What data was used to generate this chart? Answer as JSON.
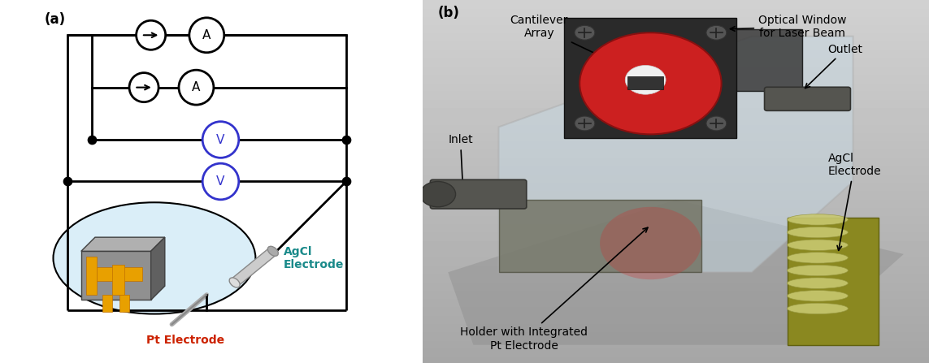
{
  "fig_width": 11.43,
  "fig_height": 4.47,
  "bg_color": "#ffffff",
  "panel_a_label": "(a)",
  "panel_b_label": "(b)",
  "lc": "#000000",
  "lw": 2.0,
  "dot_color": "#000000",
  "dot_size": 55,
  "ammeter_edge": "#000000",
  "voltmeter_edge": "#3333cc",
  "voltmeter_text": "#3333cc",
  "ammeter_text": "#000000",
  "agcl_text_color": "#1a8a8a",
  "pt_text_color": "#cc2200",
  "ellipse_fill": "#daeef8",
  "ellipse_edge": "#000000",
  "chip_gray": "#808080",
  "chip_dark": "#404040",
  "gold_color": "#e8a000",
  "gold_edge": "#c07000",
  "cyl_fill": "#bbbbbb",
  "cyl_edge": "#888888",
  "pt_rod_color": "#aaaaaa",
  "bg_b": "#b8b8b8",
  "cantilever_label": "Cantilever\nArray",
  "optical_label": "Optical Window\nfor Laser Beam",
  "outlet_label": "Outlet",
  "inlet_label": "Inlet",
  "agcl_b_label": "AgCl\nElectrode",
  "holder_label": "Holder with Integrated\nPt Electrode",
  "agcl_a_label": "AgCl\nElectrode",
  "pt_a_label": "Pt Electrode",
  "fs": 10,
  "fs_panel": 12
}
